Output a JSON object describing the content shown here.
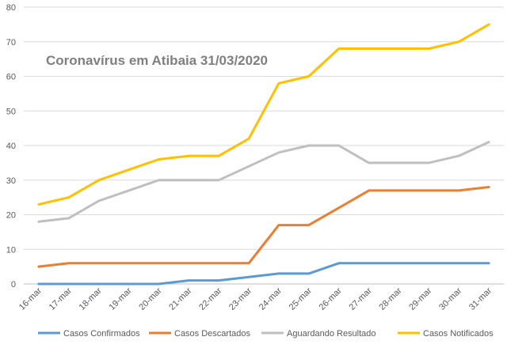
{
  "chart_data": {
    "type": "line",
    "title": "Coronavírus em Atibaia 31/03/2020",
    "xlabel": "",
    "ylabel": "",
    "categories": [
      "16-mar",
      "17-mar",
      "18-mar",
      "19-mar",
      "20-mar",
      "21-mar",
      "22-mar",
      "23-mar",
      "24-mar",
      "25-mar",
      "26-mar",
      "27-mar",
      "28-mar",
      "29-mar",
      "30-mar",
      "31-mar"
    ],
    "ylim": [
      0,
      80
    ],
    "yticks": [
      0,
      10,
      20,
      30,
      40,
      50,
      60,
      70,
      80
    ],
    "grid": true,
    "legend_position": "bottom",
    "series": [
      {
        "name": "Casos Confirmados",
        "color": "#5b9bd5",
        "values": [
          0,
          0,
          0,
          0,
          0,
          1,
          1,
          2,
          3,
          3,
          6,
          6,
          6,
          6,
          6,
          6
        ]
      },
      {
        "name": "Casos Descartados",
        "color": "#ed7d31",
        "values": [
          5,
          6,
          6,
          6,
          6,
          6,
          6,
          6,
          17,
          17,
          22,
          27,
          27,
          27,
          27,
          28
        ]
      },
      {
        "name": "Aguardando Resultado",
        "color": "#bfbfbf",
        "values": [
          18,
          19,
          24,
          27,
          30,
          30,
          30,
          34,
          38,
          40,
          40,
          35,
          35,
          35,
          37,
          41
        ]
      },
      {
        "name": "Casos Notificados",
        "color": "#ffc000",
        "values": [
          23,
          25,
          30,
          33,
          36,
          37,
          37,
          42,
          58,
          60,
          68,
          68,
          68,
          68,
          70,
          75
        ]
      }
    ]
  }
}
